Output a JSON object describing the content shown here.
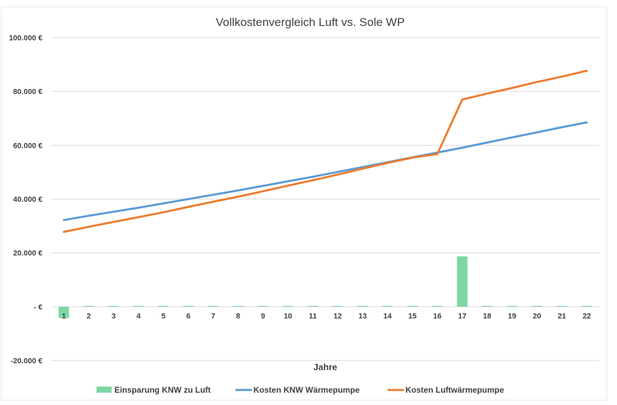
{
  "chart_data": {
    "type": "bar+line",
    "title": "Vollkostenvergleich Luft vs. Sole WP",
    "xlabel": "Jahre",
    "ylabel": "",
    "categories": [
      "1",
      "2",
      "3",
      "4",
      "5",
      "6",
      "7",
      "8",
      "9",
      "10",
      "11",
      "12",
      "13",
      "14",
      "15",
      "16",
      "17",
      "18",
      "19",
      "20",
      "21",
      "22"
    ],
    "ylim": [
      -20000,
      100000
    ],
    "yticks": [
      {
        "value": 100000,
        "label": "100.000 €"
      },
      {
        "value": 80000,
        "label": "80.000 €"
      },
      {
        "value": 60000,
        "label": "60.000 €"
      },
      {
        "value": 40000,
        "label": "40.000 €"
      },
      {
        "value": 20000,
        "label": "20.000 €"
      },
      {
        "value": 0,
        "label": "-  €"
      },
      {
        "value": -20000,
        "label": "-20.000 €"
      }
    ],
    "grid": true,
    "legend_position": "bottom",
    "series": [
      {
        "name": "Einsparung KNW zu Luft",
        "kind": "bar",
        "color": "#7fd6a4",
        "values": [
          -4200,
          300,
          300,
          300,
          300,
          300,
          300,
          300,
          300,
          300,
          300,
          300,
          300,
          300,
          300,
          300,
          18700,
          300,
          300,
          300,
          300,
          300
        ]
      },
      {
        "name": "Kosten KNW Wärmepumpe",
        "kind": "line",
        "color": "#5b9bd5",
        "values": [
          32200,
          33800,
          35300,
          36800,
          38400,
          40000,
          41600,
          43200,
          44900,
          46600,
          48300,
          50100,
          51900,
          53700,
          55500,
          57300,
          59100,
          61000,
          62900,
          64800,
          66700,
          68500
        ]
      },
      {
        "name": "Kosten Luftwärmepumpe",
        "kind": "line",
        "color": "#ed7d31",
        "values": [
          27800,
          29700,
          31500,
          33300,
          35100,
          37100,
          39000,
          40900,
          42900,
          45000,
          47000,
          49100,
          51300,
          53400,
          55400,
          56700,
          77000,
          79200,
          81300,
          83500,
          85500,
          87700
        ]
      }
    ]
  }
}
